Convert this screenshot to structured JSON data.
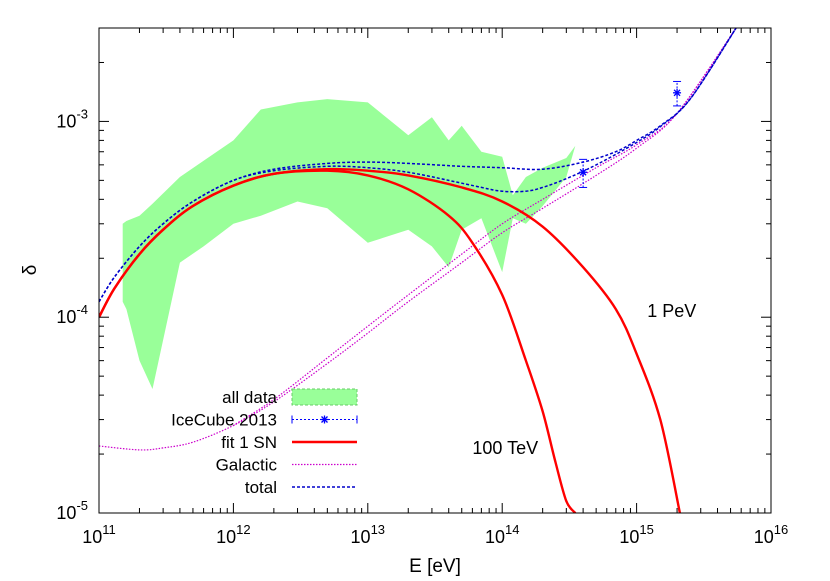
{
  "chart_data": {
    "type": "line",
    "xlabel": "E [eV]",
    "ylabel": "δ",
    "xscale": "log",
    "yscale": "log",
    "xlim": [
      100000000000.0,
      1e+16
    ],
    "ylim": [
      1e-05,
      0.003
    ],
    "grid": false,
    "legend_position": "bottom-left",
    "x_ticks": [
      {
        "value": 100000000000.0,
        "base": "10",
        "exp": "11"
      },
      {
        "value": 1000000000000.0,
        "base": "10",
        "exp": "12"
      },
      {
        "value": 10000000000000.0,
        "base": "10",
        "exp": "13"
      },
      {
        "value": 100000000000000.0,
        "base": "10",
        "exp": "14"
      },
      {
        "value": 1000000000000000.0,
        "base": "10",
        "exp": "15"
      },
      {
        "value": 1e+16,
        "base": "10",
        "exp": "16"
      }
    ],
    "y_ticks": [
      {
        "value": 1e-05,
        "base": "10",
        "exp": "-5"
      },
      {
        "value": 0.0001,
        "base": "10",
        "exp": "-4"
      },
      {
        "value": 0.001,
        "base": "10",
        "exp": "-3"
      }
    ],
    "annotations": [
      {
        "text": "1 PeV",
        "x": 1200000000000000.0,
        "y": 0.0001
      },
      {
        "text": "100 TeV",
        "x": 60000000000000.0,
        "y": 2e-05
      }
    ],
    "series": [
      {
        "name": "all data",
        "kind": "band",
        "color": "#99ff99",
        "x": [
          150000000000.0,
          160000000000.0,
          200000000000.0,
          250000000000.0,
          400000000000.0,
          600000000000.0,
          1000000000000.0,
          1600000000000.0,
          3000000000000.0,
          5000000000000.0,
          10000000000000.0,
          20000000000000.0,
          30000000000000.0,
          40000000000000.0,
          50000000000000.0,
          70000000000000.0,
          100000000000000.0,
          120000000000000.0,
          150000000000000.0,
          200000000000000.0,
          300000000000000.0,
          350000000000000.0
        ],
        "upper": [
          0.0003,
          0.00031,
          0.00033,
          0.00038,
          0.00052,
          0.00063,
          0.0008,
          0.00115,
          0.00125,
          0.0013,
          0.00125,
          0.00085,
          0.00105,
          0.0008,
          0.00095,
          0.0007,
          0.00066,
          0.00042,
          0.00052,
          0.00058,
          0.00065,
          0.00075
        ],
        "lower": [
          0.00012,
          0.00011,
          6e-05,
          4.3e-05,
          0.00019,
          0.00023,
          0.0003,
          0.00033,
          0.00039,
          0.00036,
          0.00024,
          0.00028,
          0.00023,
          0.00018,
          0.00028,
          0.00032,
          0.00017,
          0.00032,
          0.0003,
          0.00037,
          0.00052,
          0.00075
        ]
      },
      {
        "name": "IceCube 2013",
        "kind": "points",
        "color": "#0000ff",
        "x": [
          400000000000000.0,
          2000000000000000.0
        ],
        "y": [
          0.00055,
          0.0014
        ],
        "yerr_low": [
          0.00046,
          0.0012
        ],
        "yerr_high": [
          0.00064,
          0.0016
        ]
      },
      {
        "name": "fit 1 SN",
        "kind": "line",
        "color": "#ff0000",
        "curves": [
          {
            "x": [
              100000000000.0,
              130000000000.0,
              200000000000.0,
              300000000000.0,
              500000000000.0,
              1000000000000.0,
              2000000000000.0,
              5000000000000.0,
              10000000000000.0,
              20000000000000.0,
              40000000000000.0,
              60000000000000.0,
              100000000000000.0,
              150000000000000.0,
              200000000000000.0,
              250000000000000.0,
              300000000000000.0,
              350000000000000.0
            ],
            "y": [
              0.0001,
              0.00014,
              0.00021,
              0.00028,
              0.00037,
              0.00047,
              0.00054,
              0.00056,
              0.00053,
              0.00045,
              0.00033,
              0.00024,
              0.00013,
              6e-05,
              3.3e-05,
              1.8e-05,
              1.15e-05,
              1e-05
            ]
          },
          {
            "x": [
              100000000000.0,
              130000000000.0,
              200000000000.0,
              300000000000.0,
              500000000000.0,
              1000000000000.0,
              2000000000000.0,
              5000000000000.0,
              10000000000000.0,
              20000000000000.0,
              50000000000000.0,
              100000000000000.0,
              200000000000000.0,
              400000000000000.0,
              700000000000000.0,
              1000000000000000.0,
              1500000000000000.0,
              2100000000000000.0
            ],
            "y": [
              0.0001,
              0.00014,
              0.00021,
              0.00028,
              0.00037,
              0.00047,
              0.00054,
              0.00057,
              0.00056,
              0.00053,
              0.00046,
              0.00039,
              0.00029,
              0.00018,
              0.00011,
              6.5e-05,
              3e-05,
              1e-05
            ]
          }
        ]
      },
      {
        "name": "Galactic",
        "kind": "line",
        "color": "#cc00cc",
        "curves": [
          {
            "x": [
              100000000000.0,
              200000000000.0,
              300000000000.0,
              500000000000.0,
              1000000000000.0,
              2000000000000.0,
              5000000000000.0,
              10000000000000.0,
              20000000000000.0,
              50000000000000.0,
              100000000000000.0,
              200000000000000.0,
              500000000000000.0,
              1000000000000000.0,
              2000000000000000.0,
              5500000000000000.0
            ],
            "y": [
              2.2e-05,
              2.1e-05,
              2.15e-05,
              2.3e-05,
              2.8e-05,
              3.7e-05,
              5.8e-05,
              8.3e-05,
              0.00012,
              0.00019,
              0.00027,
              0.00036,
              0.00053,
              0.00073,
              0.0011,
              0.003
            ]
          },
          {
            "x": [
              1000000000000.0,
              2000000000000.0,
              5000000000000.0,
              10000000000000.0,
              20000000000000.0,
              50000000000000.0,
              100000000000000.0,
              200000000000000.0,
              500000000000000.0,
              1000000000000000.0,
              2000000000000000.0,
              5500000000000000.0
            ],
            "y": [
              2.8e-05,
              3.8e-05,
              6.2e-05,
              9e-05,
              0.00013,
              0.00021,
              0.0003,
              0.0004,
              0.00058,
              0.00076,
              0.0011,
              0.003
            ]
          }
        ]
      },
      {
        "name": "total",
        "kind": "line",
        "color": "#0000cc",
        "curves": [
          {
            "x": [
              100000000000.0,
              130000000000.0,
              200000000000.0,
              300000000000.0,
              500000000000.0,
              1000000000000.0,
              2000000000000.0,
              5000000000000.0,
              10000000000000.0,
              20000000000000.0,
              50000000000000.0,
              100000000000000.0,
              200000000000000.0,
              400000000000000.0,
              700000000000000.0,
              1000000000000000.0,
              1500000000000000.0,
              2500000000000000.0,
              5500000000000000.0
            ],
            "y": [
              0.00012,
              0.00016,
              0.00023,
              0.0003,
              0.00039,
              0.0005,
              0.00057,
              0.00061,
              0.00062,
              0.00061,
              0.00059,
              0.00058,
              0.00057,
              0.00062,
              0.0007,
              0.0008,
              0.00095,
              0.0013,
              0.003
            ]
          },
          {
            "x": [
              100000000000.0,
              130000000000.0,
              200000000000.0,
              300000000000.0,
              500000000000.0,
              1000000000000.0,
              2000000000000.0,
              5000000000000.0,
              10000000000000.0,
              20000000000000.0,
              40000000000000.0,
              70000000000000.0,
              100000000000000.0,
              150000000000000.0,
              200000000000000.0,
              300000000000000.0,
              500000000000000.0,
              1000000000000000.0,
              1500000000000000.0,
              2500000000000000.0,
              5500000000000000.0
            ],
            "y": [
              0.00012,
              0.00016,
              0.00023,
              0.0003,
              0.00039,
              0.0005,
              0.00056,
              0.00059,
              0.00058,
              0.00055,
              0.0005,
              0.00046,
              0.00044,
              0.00044,
              0.00046,
              0.00051,
              0.0006,
              0.00078,
              0.00094,
              0.0013,
              0.003
            ]
          }
        ]
      }
    ]
  }
}
